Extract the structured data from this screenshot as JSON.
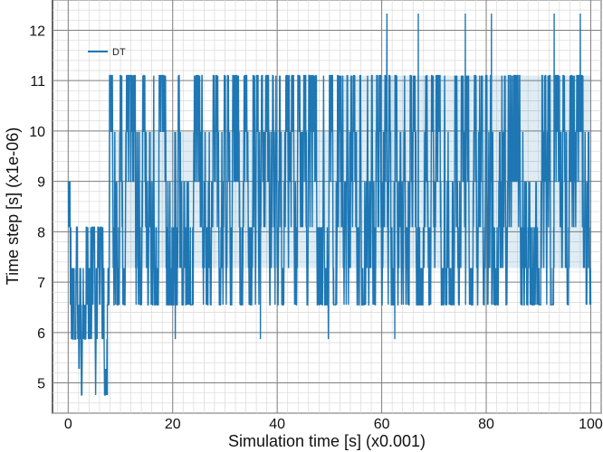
{
  "chart_data": {
    "type": "line",
    "xlabel": "Simulation time [s] (x0.001)",
    "ylabel": "Time step [s] (x1e-06)",
    "xlim": [
      -3,
      102
    ],
    "ylim": [
      4.4,
      12.6
    ],
    "x_ticks": [
      0,
      20,
      40,
      60,
      80,
      100
    ],
    "y_ticks": [
      5,
      6,
      7,
      8,
      9,
      10,
      11,
      12
    ],
    "x_minor_step": 2,
    "y_minor_step": 0.2,
    "grid": true,
    "legend_position": "top-left",
    "color": "#1f77b4",
    "levels": [
      4.76,
      5.28,
      5.87,
      6.55,
      7.28,
      8.09,
      8.99,
      9.98,
      11.1,
      12.33
    ],
    "series": [
      {
        "name": "DT",
        "segments": [
          {
            "x": [
              0.0,
              1.5
            ],
            "low": 5.87,
            "high": 9.0
          },
          {
            "x": [
              1.5,
              3.0
            ],
            "low": 4.76,
            "high": 8.09
          },
          {
            "x": [
              3.0,
              5.0
            ],
            "low": 5.87,
            "high": 8.09
          },
          {
            "x": [
              5.0,
              7.5
            ],
            "low": 4.76,
            "high": 8.09
          },
          {
            "x": [
              7.5,
              12.0
            ],
            "low": 6.55,
            "high": 11.1
          },
          {
            "x": [
              12.0,
              52.0
            ],
            "low": 6.55,
            "high": 11.1
          },
          {
            "x": [
              52.0,
              100.0
            ],
            "low": 6.55,
            "high": 11.1
          }
        ],
        "dense_bands": [
          {
            "x": [
              8.0,
              52.0
            ],
            "low": 7.28,
            "high": 9.98
          },
          {
            "x": [
              52.0,
              100.0
            ],
            "low": 7.28,
            "high": 11.1
          }
        ],
        "spikes": [
          {
            "x": 61.0,
            "y": 12.33
          },
          {
            "x": 67.0,
            "y": 12.33
          },
          {
            "x": 76.0,
            "y": 12.33
          },
          {
            "x": 81.0,
            "y": 12.33
          },
          {
            "x": 93.0,
            "y": 12.33
          },
          {
            "x": 98.0,
            "y": 12.33
          },
          {
            "x": 20.5,
            "y": 5.87
          },
          {
            "x": 36.8,
            "y": 5.87
          },
          {
            "x": 49.8,
            "y": 5.87
          },
          {
            "x": 62.5,
            "y": 5.87
          }
        ]
      }
    ]
  }
}
